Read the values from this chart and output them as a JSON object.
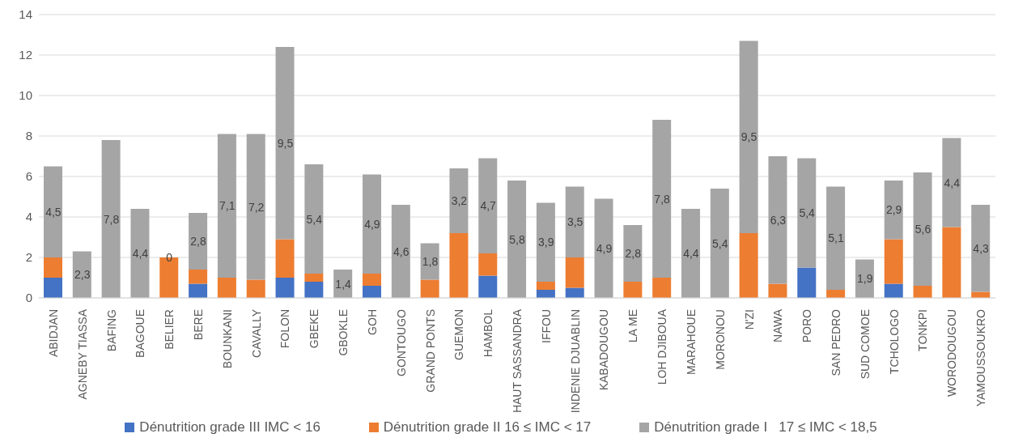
{
  "chart_data": {
    "type": "bar",
    "stacked": true,
    "categories": [
      "ABIDJAN",
      "AGNEBY TIASSA",
      "BAFING",
      "BAGOUE",
      "BELIER",
      "BERE",
      "BOUNKANI",
      "CAVALLY",
      "FOLON",
      "GBEKE",
      "GBOKLE",
      "GOH",
      "GONTOUGO",
      "GRAND PONTS",
      "GUEMON",
      "HAMBOL",
      "HAUT SASSANDRA",
      "IFFOU",
      "INDENIE DJUABLIN",
      "KABADOUGOU",
      "LA ME",
      "LOH DJIBOUA",
      "MARAHOUE",
      "MORONOU",
      "N'ZI",
      "NAWA",
      "PORO",
      "SAN PEDRO",
      "SUD COMOE",
      "TCHOLOGO",
      "TONKPI",
      "WORODOUGOU",
      "YAMOUSSOUKRO"
    ],
    "series": [
      {
        "name": "Dénutrition grade III IMC < 16",
        "color": "#4472c4",
        "values": [
          1.0,
          0,
          0,
          0,
          0,
          0.7,
          0,
          0,
          1.0,
          0.8,
          0,
          0.6,
          0,
          0,
          0,
          1.1,
          0,
          0.4,
          0.5,
          0,
          0,
          0,
          0,
          0,
          0,
          0,
          1.5,
          0,
          0,
          0.7,
          0,
          0,
          0
        ]
      },
      {
        "name": "Dénutrition grade II 16 ≤ IMC < 17",
        "color": "#ed7d31",
        "values": [
          1.0,
          0,
          0,
          0,
          2.0,
          0.7,
          1.0,
          0.9,
          1.9,
          0.4,
          0,
          0.6,
          0,
          0.9,
          3.2,
          1.1,
          0,
          0.4,
          1.5,
          0,
          0.8,
          1.0,
          0,
          0,
          3.2,
          0.7,
          0,
          0.4,
          0,
          2.2,
          0.6,
          3.5,
          0.3
        ]
      },
      {
        "name": "Dénutrition grade I   17 ≤ IMC < 18,5",
        "color": "#a5a5a5",
        "values": [
          4.5,
          2.3,
          7.8,
          4.4,
          0,
          2.8,
          7.1,
          7.2,
          9.5,
          5.4,
          1.4,
          4.9,
          4.6,
          1.8,
          3.2,
          4.7,
          5.8,
          3.9,
          3.5,
          4.9,
          2.8,
          7.8,
          4.4,
          5.4,
          9.5,
          6.3,
          5.4,
          5.1,
          1.9,
          2.9,
          5.6,
          4.4,
          4.3
        ],
        "value_labels": [
          "4,5",
          "2,3",
          "7,8",
          "4,4",
          "0",
          "2,8",
          "7,1",
          "7,2",
          "9,5",
          "5,4",
          "1,4",
          "4,9",
          "4,6",
          "1,8",
          "3,2",
          "4,7",
          "5,8",
          "3,9",
          "3,5",
          "4,9",
          "2,8",
          "7,8",
          "4,4",
          "5,4",
          "9,5",
          "6,3",
          "5,4",
          "5,1",
          "1,9",
          "2,9",
          "5,6",
          "4,4",
          "4,3"
        ]
      }
    ],
    "ylim": [
      0,
      14
    ],
    "yticks": [
      0,
      2,
      4,
      6,
      8,
      10,
      12,
      14
    ],
    "grid": "y",
    "legend": "bottom"
  }
}
